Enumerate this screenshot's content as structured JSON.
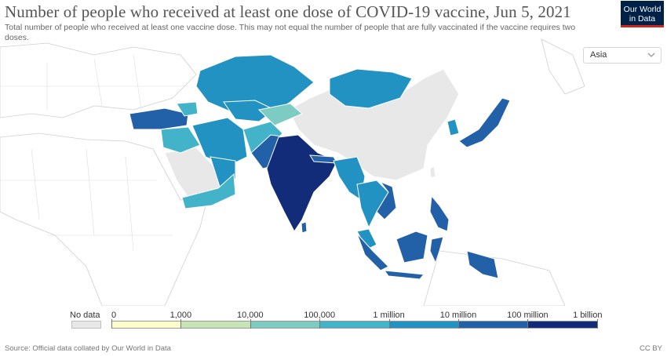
{
  "header": {
    "title": "Number of people who received at least one dose of COVID-19 vaccine, Jun 5, 2021",
    "subtitle": "Total number of people who received at least one vaccine dose. This may not equal the number of people that are fully vaccinated if the vaccine requires two doses."
  },
  "logo": {
    "line1": "Our World",
    "line2": "in Data"
  },
  "region_select": {
    "selected": "Asia",
    "icon": "chevron-down-icon"
  },
  "legend": {
    "no_data_label": "No data",
    "no_data_color": "#e8e8e8",
    "ticks": [
      "0",
      "1,000",
      "10,000",
      "100,000",
      "1 million",
      "10 million",
      "100 million",
      "1 billion"
    ],
    "bins": [
      {
        "color": "#fefdcc"
      },
      {
        "color": "#c6e4b4"
      },
      {
        "color": "#7dccc4"
      },
      {
        "color": "#43b3c9"
      },
      {
        "color": "#2292c2"
      },
      {
        "color": "#2260a8"
      },
      {
        "color": "#132c7a"
      }
    ]
  },
  "footer": {
    "source": "Source: Official data collated by Our World in Data",
    "license": "CC BY"
  }
}
